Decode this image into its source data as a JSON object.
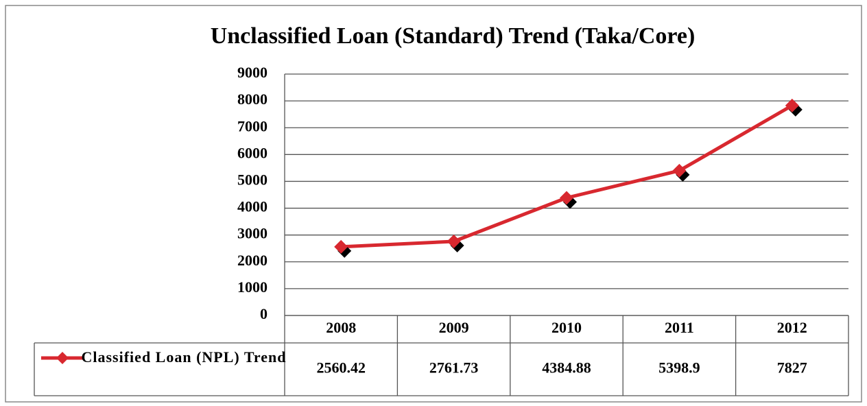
{
  "chart_data": {
    "type": "line",
    "title": "Unclassified Loan (Standard) Trend (Taka/Core)",
    "categories": [
      "2008",
      "2009",
      "2010",
      "2011",
      "2012"
    ],
    "series": [
      {
        "name": "Classified Loan (NPL) Trend",
        "color": "#d8282f",
        "values": [
          2560.42,
          2761.73,
          4384.88,
          5398.9,
          7827
        ]
      }
    ],
    "ylim": [
      0,
      9000
    ],
    "yticks": [
      0,
      1000,
      2000,
      3000,
      4000,
      5000,
      6000,
      7000,
      8000,
      9000
    ],
    "grid": true,
    "data_table": true
  }
}
